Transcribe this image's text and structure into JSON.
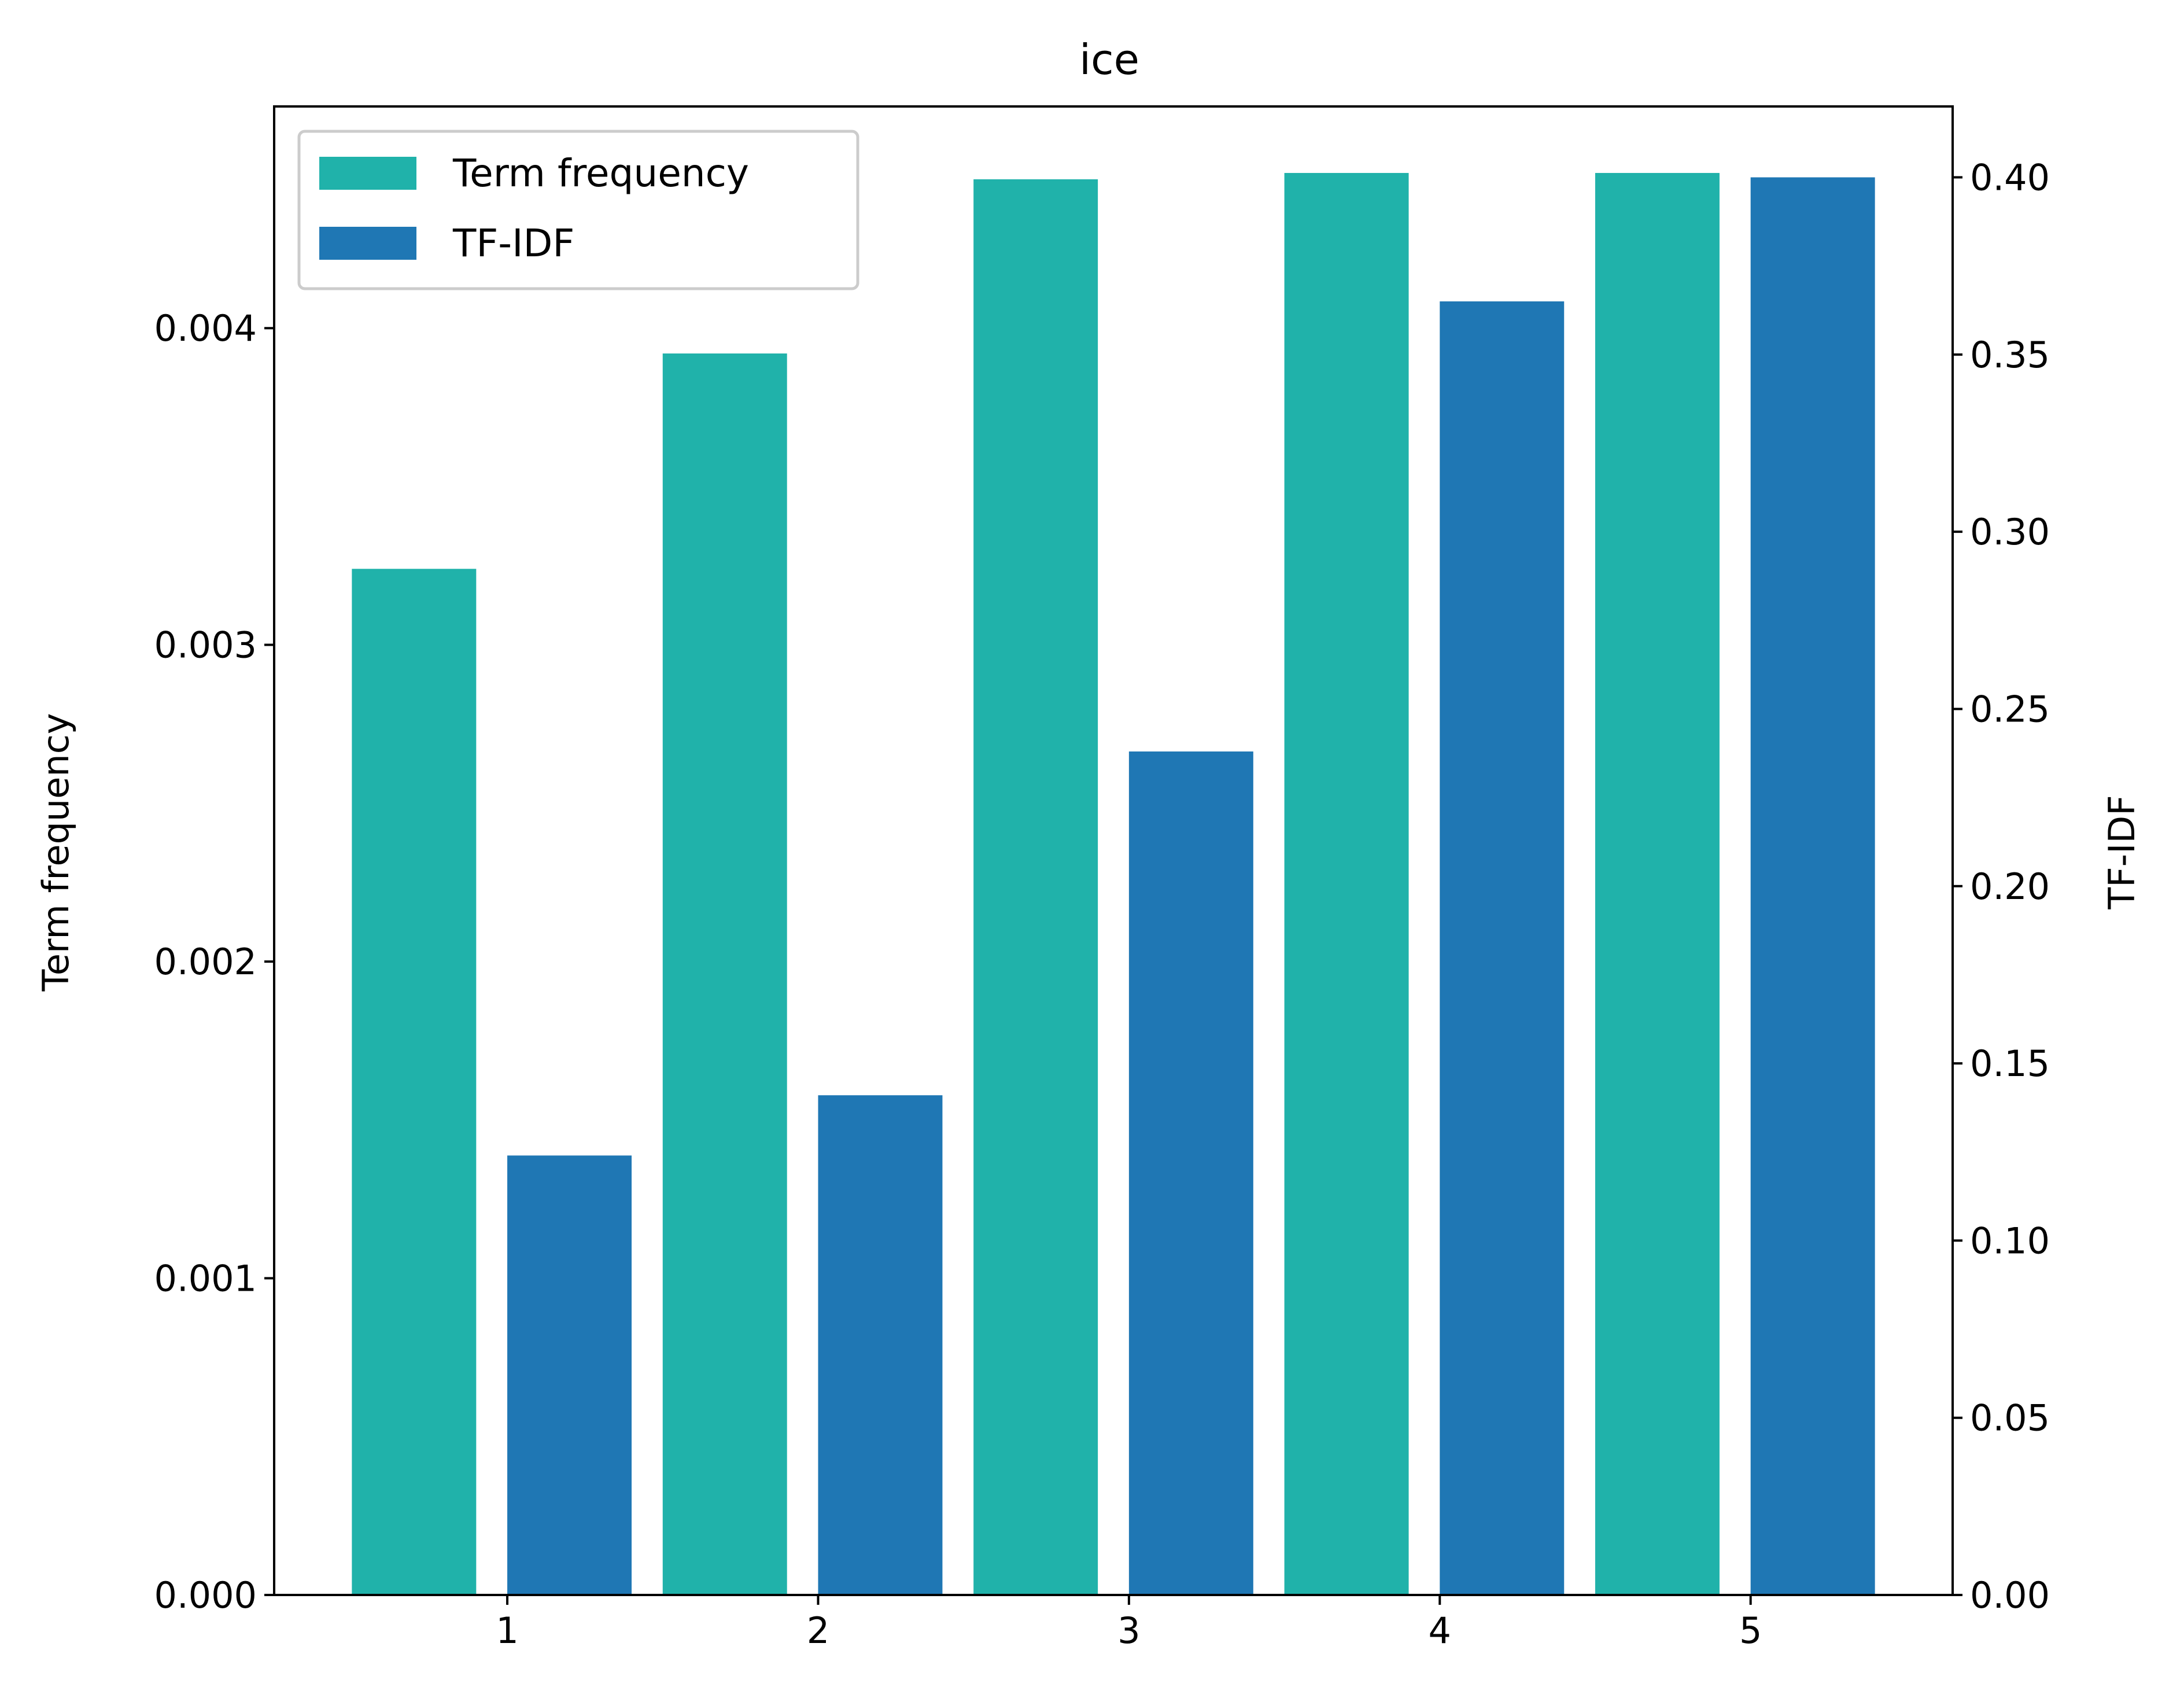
{
  "chart_data": {
    "type": "bar",
    "title": "ice",
    "xlabel": "",
    "ylabel": "Term frequency",
    "y2label": "TF-IDF",
    "categories": [
      "1",
      "2",
      "3",
      "4",
      "5"
    ],
    "xlim": [
      0.25,
      5.65
    ],
    "ylim": [
      0,
      0.0047
    ],
    "y2lim": [
      0,
      0.42
    ],
    "yticks": [
      "0.000",
      "0.001",
      "0.002",
      "0.003",
      "0.004"
    ],
    "y2ticks": [
      "0.00",
      "0.05",
      "0.10",
      "0.15",
      "0.20",
      "0.25",
      "0.30",
      "0.35",
      "0.40"
    ],
    "series": [
      {
        "name": "Term frequency",
        "axis": "left",
        "color": "#20b2aa",
        "values": [
          0.00324,
          0.00392,
          0.00447,
          0.00449,
          0.00449
        ]
      },
      {
        "name": "TF-IDF",
        "axis": "right",
        "color": "#1f77b4",
        "values": [
          0.124,
          0.141,
          0.238,
          0.365,
          0.4
        ]
      }
    ],
    "legend_position": "top-left",
    "grid": false
  }
}
